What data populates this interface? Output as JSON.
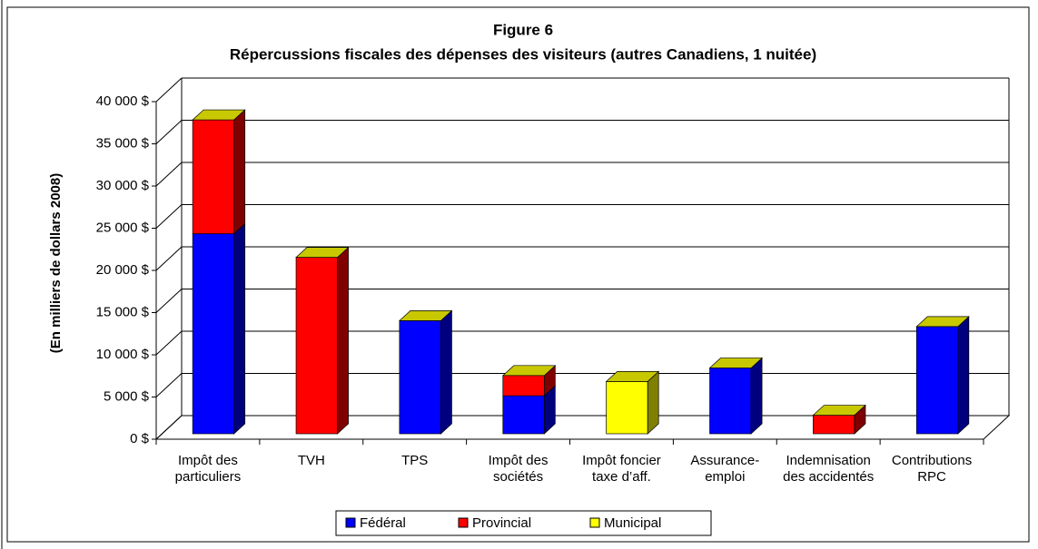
{
  "chart_data": {
    "type": "bar3d_stacked",
    "title": "Figure 6",
    "subtitle": "Répercussions fiscales des dépenses des visiteurs (autres Canadiens, 1 nuitée)",
    "y_axis_label": "(En milliers de dollars 2008)",
    "categories": [
      "Impôt des\nparticuliers",
      "TVH",
      "TPS",
      "Impôt des\nsociétés",
      "Impôt foncier\ntaxe d’aff.",
      "Assurance-\nemploi",
      "Indemnisation\ndes accidentés",
      "Contributions\nRPC"
    ],
    "series": [
      {
        "name": "Fédéral",
        "color": "#0000ff",
        "side": "#00007f",
        "values": [
          23700,
          0,
          13400,
          4500,
          0,
          7800,
          0,
          12700
        ]
      },
      {
        "name": "Provincial",
        "color": "#ff0000",
        "side": "#800000",
        "values": [
          13500,
          20900,
          0,
          2400,
          0,
          0,
          2200,
          0
        ]
      },
      {
        "name": "Municipal",
        "color": "#ffff00",
        "side": "#808000",
        "values": [
          0,
          0,
          0,
          0,
          6200,
          0,
          0,
          0
        ]
      }
    ],
    "top_color": "#c8c800",
    "ylim": [
      0,
      40000
    ],
    "yticks": [
      {
        "value": 0,
        "label": "0 $"
      },
      {
        "value": 5000,
        "label": "5 000 $"
      },
      {
        "value": 10000,
        "label": "10 000 $"
      },
      {
        "value": 15000,
        "label": "15 000 $"
      },
      {
        "value": 20000,
        "label": "20 000 $"
      },
      {
        "value": 25000,
        "label": "25 000 $"
      },
      {
        "value": 30000,
        "label": "30 000 $"
      },
      {
        "value": 35000,
        "label": "35 000 $"
      },
      {
        "value": 40000,
        "label": "40 000 $"
      }
    ],
    "grid": true,
    "legend": "bottom"
  }
}
